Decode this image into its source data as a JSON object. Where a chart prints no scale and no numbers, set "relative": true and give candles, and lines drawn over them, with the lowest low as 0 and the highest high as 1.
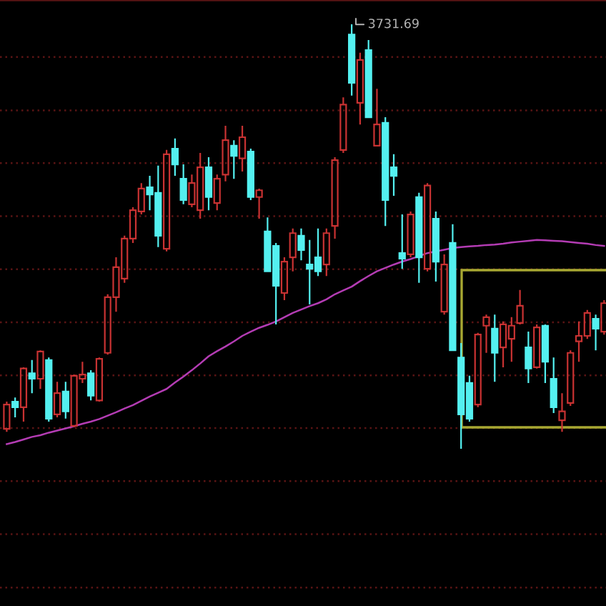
{
  "chart_data": {
    "type": "candlestick",
    "relative": true,
    "ref_lines": [
      {
        "axis": "y",
        "value": 0.923,
        "color": "#5a1414",
        "line_style": "dotted"
      },
      {
        "axis": "y",
        "value": 0.797,
        "color": "#5a1414",
        "line_style": "dotted"
      },
      {
        "axis": "y",
        "value": 0.673,
        "color": "#5a1414",
        "line_style": "dotted"
      },
      {
        "axis": "y",
        "value": 0.548,
        "color": "#5a1414",
        "line_style": "dotted"
      },
      {
        "axis": "y",
        "value": 0.423,
        "color": "#5a1414",
        "line_style": "dotted"
      },
      {
        "axis": "y",
        "value": 0.298,
        "color": "#5a1414",
        "line_style": "dotted"
      },
      {
        "axis": "y",
        "value": 0.173,
        "color": "#5a1414",
        "line_style": "dotted"
      },
      {
        "axis": "y",
        "value": 0.049,
        "color": "#5a1414",
        "line_style": "dotted"
      },
      {
        "axis": "y",
        "value": -0.076,
        "color": "#5a1414",
        "line_style": "dotted"
      },
      {
        "axis": "y",
        "value": -0.201,
        "color": "#5a1414",
        "line_style": "dotted"
      },
      {
        "axis": "y",
        "value": -0.327,
        "color": "#5a1414",
        "line_style": "dotted"
      }
    ],
    "categories": [
      null,
      null,
      null,
      null,
      null,
      null,
      null,
      null,
      null,
      null,
      null,
      null,
      null,
      null,
      null,
      null,
      null,
      null,
      null,
      null,
      null,
      null,
      null,
      null,
      null,
      null,
      null,
      null,
      null,
      null,
      null,
      null,
      null,
      null,
      null,
      null,
      null,
      null,
      null,
      null,
      null,
      null,
      null,
      null,
      null,
      null,
      null,
      null,
      null,
      null,
      null,
      null,
      null,
      null,
      null,
      null,
      null,
      null,
      null,
      null,
      null,
      null,
      null,
      null,
      null,
      null,
      null,
      null,
      null,
      null,
      null,
      null
    ],
    "ohlc": [
      [
        0.047,
        0.111,
        0.04,
        0.104
      ],
      [
        0.111,
        0.121,
        0.074,
        0.098
      ],
      [
        0.098,
        0.192,
        0.064,
        0.189
      ],
      [
        0.178,
        0.209,
        0.131,
        0.165
      ],
      [
        0.165,
        0.232,
        0.141,
        0.229
      ],
      [
        0.209,
        0.215,
        0.064,
        0.071
      ],
      [
        0.081,
        0.158,
        0.074,
        0.131
      ],
      [
        0.135,
        0.158,
        0.071,
        0.088
      ],
      [
        0.054,
        0.175,
        0.051,
        0.172
      ],
      [
        0.165,
        0.205,
        0.155,
        0.175
      ],
      [
        0.178,
        0.185,
        0.114,
        0.125
      ],
      [
        0.114,
        0.215,
        0.111,
        0.212
      ],
      [
        0.226,
        0.364,
        0.222,
        0.357
      ],
      [
        0.357,
        0.451,
        0.323,
        0.428
      ],
      [
        0.401,
        0.502,
        0.391,
        0.495
      ],
      [
        0.495,
        0.569,
        0.485,
        0.562
      ],
      [
        0.559,
        0.626,
        0.552,
        0.613
      ],
      [
        0.616,
        0.643,
        0.562,
        0.599
      ],
      [
        0.603,
        0.667,
        0.475,
        0.502
      ],
      [
        0.471,
        0.704,
        0.465,
        0.694
      ],
      [
        0.707,
        0.731,
        0.643,
        0.67
      ],
      [
        0.636,
        0.67,
        0.576,
        0.586
      ],
      [
        0.576,
        0.646,
        0.569,
        0.626
      ],
      [
        0.562,
        0.697,
        0.542,
        0.663
      ],
      [
        0.663,
        0.687,
        0.562,
        0.593
      ],
      [
        0.579,
        0.646,
        0.562,
        0.636
      ],
      [
        0.646,
        0.761,
        0.63,
        0.727
      ],
      [
        0.714,
        0.727,
        0.636,
        0.69
      ],
      [
        0.684,
        0.761,
        0.653,
        0.734
      ],
      [
        0.7,
        0.707,
        0.586,
        0.593
      ],
      [
        0.593,
        0.613,
        0.542,
        0.609
      ],
      [
        0.512,
        0.545,
        0.418,
        0.418
      ],
      [
        0.478,
        0.485,
        0.293,
        0.384
      ],
      [
        0.367,
        0.451,
        0.35,
        0.441
      ],
      [
        0.451,
        0.519,
        0.418,
        0.508
      ],
      [
        0.502,
        0.519,
        0.444,
        0.468
      ],
      [
        0.434,
        0.492,
        0.34,
        0.424
      ],
      [
        0.451,
        0.519,
        0.407,
        0.418
      ],
      [
        0.434,
        0.519,
        0.407,
        0.508
      ],
      [
        0.525,
        0.687,
        0.495,
        0.68
      ],
      [
        0.704,
        0.828,
        0.697,
        0.811
      ],
      [
        0.976,
        1.0,
        0.832,
        0.862
      ],
      [
        0.815,
        0.933,
        0.764,
        0.916
      ],
      [
        0.939,
        0.963,
        0.781,
        0.781
      ],
      [
        0.714,
        0.848,
        0.714,
        0.764
      ],
      [
        0.768,
        0.781,
        0.525,
        0.586
      ],
      [
        0.663,
        0.694,
        0.596,
        0.643
      ],
      [
        0.461,
        0.552,
        0.424,
        0.448
      ],
      [
        0.458,
        0.559,
        0.451,
        0.552
      ],
      [
        0.593,
        0.603,
        0.391,
        0.451
      ],
      [
        0.424,
        0.626,
        0.418,
        0.62
      ],
      [
        0.542,
        0.559,
        0.394,
        0.441
      ],
      [
        0.323,
        0.458,
        0.316,
        0.434
      ],
      [
        0.485,
        0.529,
        0.232,
        0.232
      ],
      [
        0.215,
        0.249,
        0.0,
        0.081
      ],
      [
        0.155,
        0.172,
        0.064,
        0.071
      ],
      [
        0.104,
        0.273,
        0.098,
        0.269
      ],
      [
        0.29,
        0.316,
        0.226,
        0.31
      ],
      [
        0.283,
        0.316,
        0.158,
        0.226
      ],
      [
        0.239,
        0.3,
        0.192,
        0.293
      ],
      [
        0.259,
        0.31,
        0.205,
        0.29
      ],
      [
        0.296,
        0.374,
        0.293,
        0.337
      ],
      [
        0.239,
        0.276,
        0.155,
        0.189
      ],
      [
        0.192,
        0.293,
        0.189,
        0.286
      ],
      [
        0.29,
        0.293,
        0.155,
        0.205
      ],
      [
        0.165,
        0.215,
        0.084,
        0.098
      ],
      [
        0.067,
        0.131,
        0.04,
        0.088
      ],
      [
        0.108,
        0.232,
        0.101,
        0.226
      ],
      [
        0.253,
        0.3,
        0.205,
        0.266
      ],
      [
        0.266,
        0.327,
        0.259,
        0.32
      ],
      [
        0.306,
        0.316,
        0.232,
        0.283
      ],
      [
        0.276,
        0.35,
        0.269,
        0.343
      ]
    ],
    "colors": [
      "#c83232",
      "#54f0f0",
      "#c83232",
      "#54f0f0",
      "#c83232",
      "#54f0f0",
      "#c83232",
      "#54f0f0",
      "#c83232",
      "#c83232",
      "#54f0f0",
      "#c83232",
      "#c83232",
      "#c83232",
      "#c83232",
      "#c83232",
      "#c83232",
      "#54f0f0",
      "#54f0f0",
      "#c83232",
      "#54f0f0",
      "#54f0f0",
      "#c83232",
      "#c83232",
      "#54f0f0",
      "#c83232",
      "#c83232",
      "#54f0f0",
      "#c83232",
      "#54f0f0",
      "#c83232",
      "#54f0f0",
      "#54f0f0",
      "#c83232",
      "#c83232",
      "#54f0f0",
      "#54f0f0",
      "#54f0f0",
      "#c83232",
      "#c83232",
      "#c83232",
      "#54f0f0",
      "#c83232",
      "#54f0f0",
      "#c83232",
      "#54f0f0",
      "#54f0f0",
      "#54f0f0",
      "#c83232",
      "#54f0f0",
      "#c83232",
      "#54f0f0",
      "#c83232",
      "#54f0f0",
      "#54f0f0",
      "#54f0f0",
      "#c83232",
      "#c83232",
      "#54f0f0",
      "#c83232",
      "#c83232",
      "#c83232",
      "#54f0f0",
      "#c83232",
      "#54f0f0",
      "#54f0f0",
      "#c83232",
      "#c83232",
      "#c83232",
      "#c83232",
      "#54f0f0",
      "#c83232"
    ],
    "series": [
      {
        "type": "line",
        "color": "#b43cb4",
        "values": [
          0.011,
          0.016,
          0.022,
          0.028,
          0.032,
          0.038,
          0.043,
          0.048,
          0.053,
          0.059,
          0.064,
          0.07,
          0.078,
          0.086,
          0.095,
          0.103,
          0.113,
          0.123,
          0.132,
          0.141,
          0.156,
          0.17,
          0.185,
          0.201,
          0.218,
          0.23,
          0.241,
          0.253,
          0.266,
          0.276,
          0.285,
          0.292,
          0.3,
          0.31,
          0.32,
          0.328,
          0.336,
          0.343,
          0.352,
          0.364,
          0.373,
          0.382,
          0.395,
          0.407,
          0.418,
          0.426,
          0.434,
          0.441,
          0.447,
          0.454,
          0.461,
          0.465,
          0.469,
          0.473,
          0.475,
          0.477,
          0.478,
          0.48,
          0.481,
          0.483,
          0.486,
          0.488,
          0.49,
          0.492,
          0.491,
          0.49,
          0.489,
          0.487,
          0.485,
          0.483,
          0.48,
          0.478
        ]
      }
    ],
    "annotations": [
      "3731.69"
    ]
  }
}
